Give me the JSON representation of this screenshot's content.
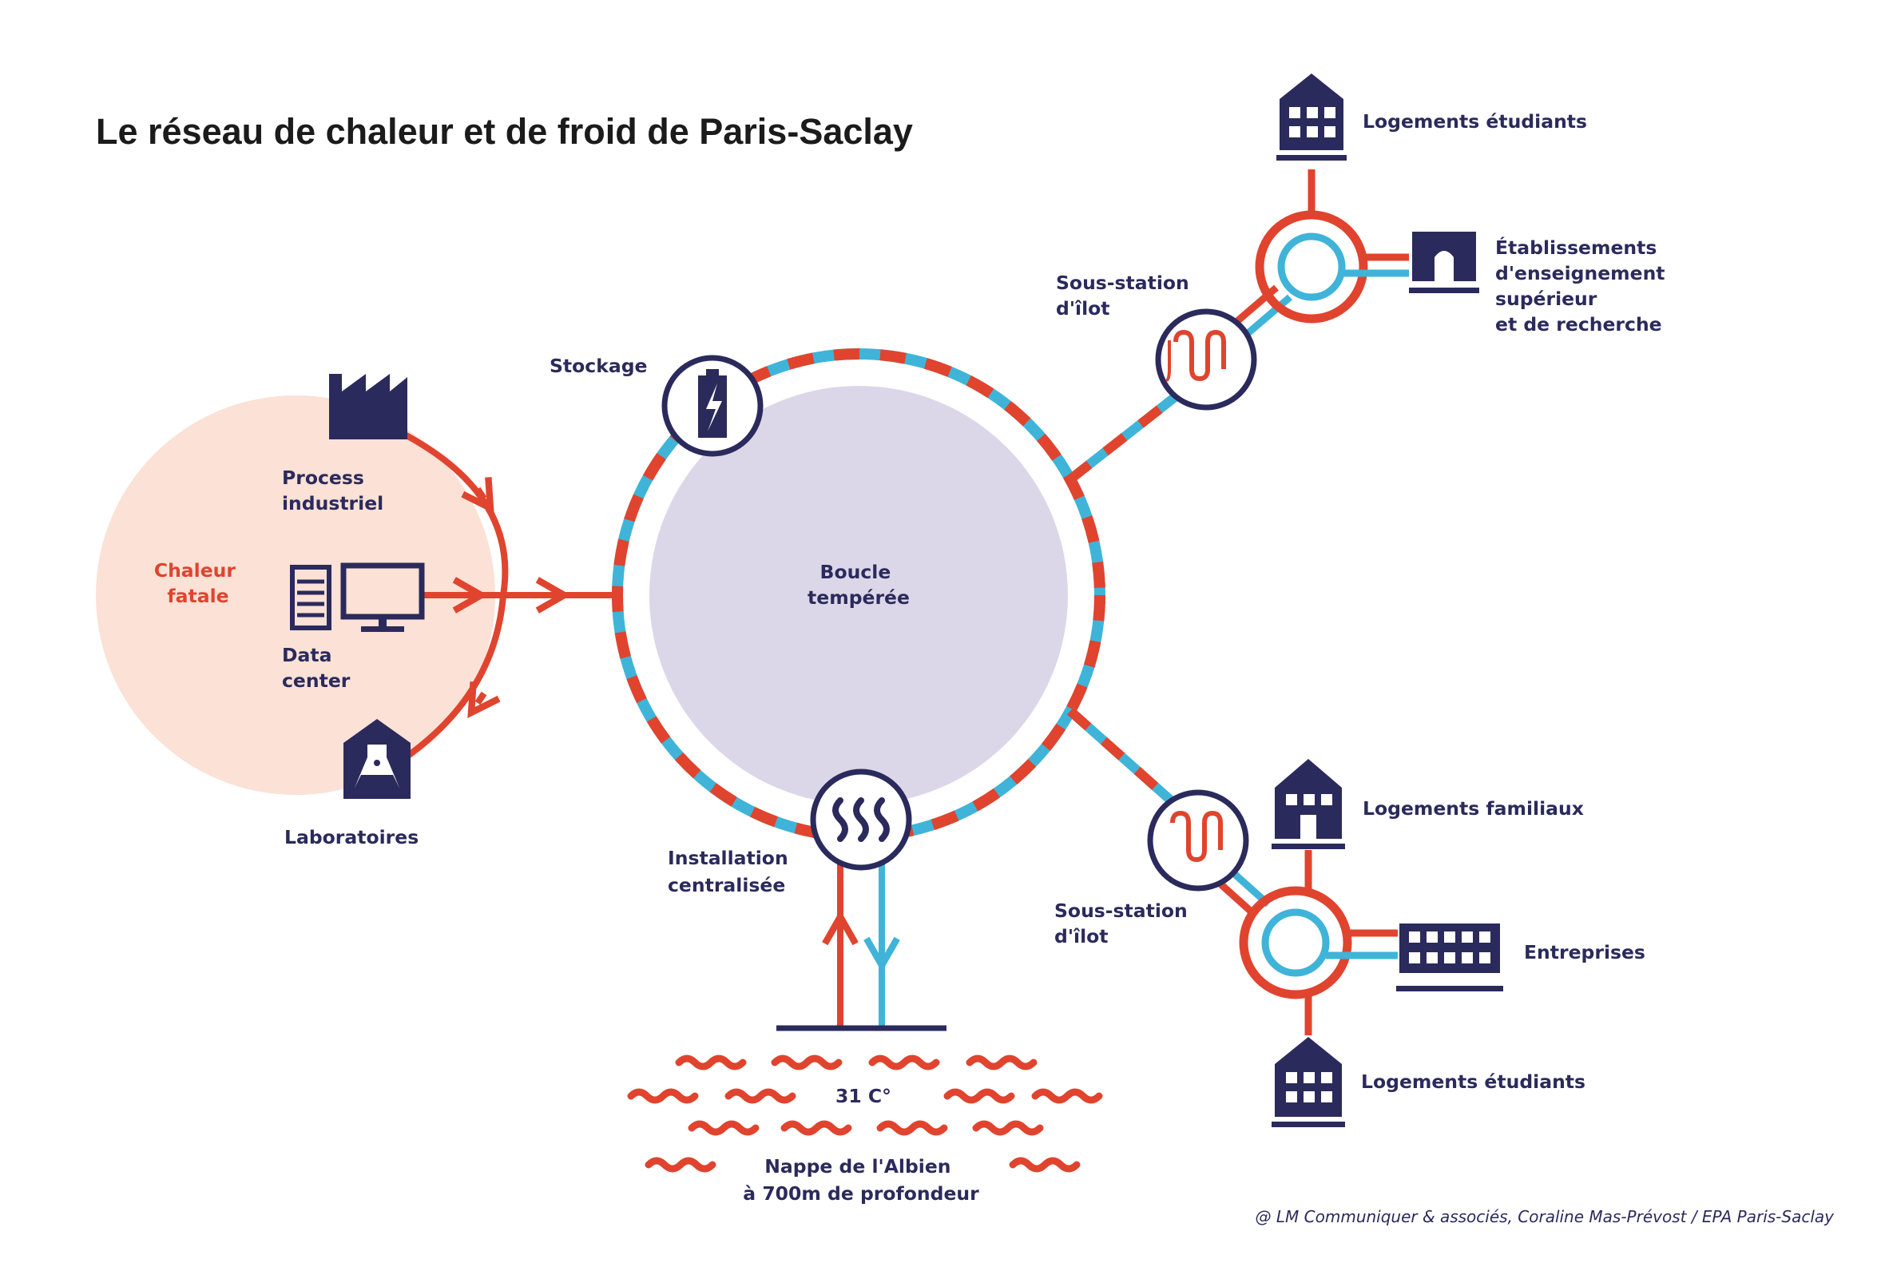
{
  "title": "Le  réseau de chaleur et de froid de Paris-Saclay",
  "colors": {
    "hot": "#e0442e",
    "cold": "#3fb4d8",
    "navy": "#2b2a5c",
    "source_zone": "#fbe1d6",
    "loop_core": "#dcd7e8"
  },
  "sources": {
    "zone_label": [
      "Chaleur",
      "fatale"
    ],
    "process": [
      "Process",
      "industriel"
    ],
    "datacenter": [
      "Data",
      "center"
    ],
    "labs": [
      "Laboratoires"
    ]
  },
  "loop": {
    "label": [
      "Boucle",
      "tempérée"
    ],
    "storage": "Stockage",
    "installation": [
      "Installation",
      "centralisée"
    ]
  },
  "aquifer": {
    "temperature": "31 C°",
    "label": [
      "Nappe de l'Albien",
      "à 700m de profondeur"
    ]
  },
  "substation_top": {
    "label": [
      "Sous-station",
      "d'îlot"
    ],
    "consumers": {
      "housing": "Logements étudiants",
      "education": [
        "Établissements",
        "d'enseignement",
        "supérieur",
        "et de recherche"
      ]
    }
  },
  "substation_bottom": {
    "label": [
      "Sous-station",
      "d'îlot"
    ],
    "consumers": {
      "family_housing": "Logements familiaux",
      "companies": "Entreprises",
      "student_housing": "Logements étudiants"
    }
  },
  "icons": [
    "factory-icon",
    "server-icon",
    "monitor-icon",
    "flask-icon",
    "battery-icon",
    "heat-waves-icon",
    "heat-exchanger-icon",
    "building-icon",
    "school-icon",
    "office-icon",
    "house-icon"
  ],
  "credit": "@ LM Communiquer & associés, Coraline Mas-Prévost / EPA Paris-Saclay"
}
